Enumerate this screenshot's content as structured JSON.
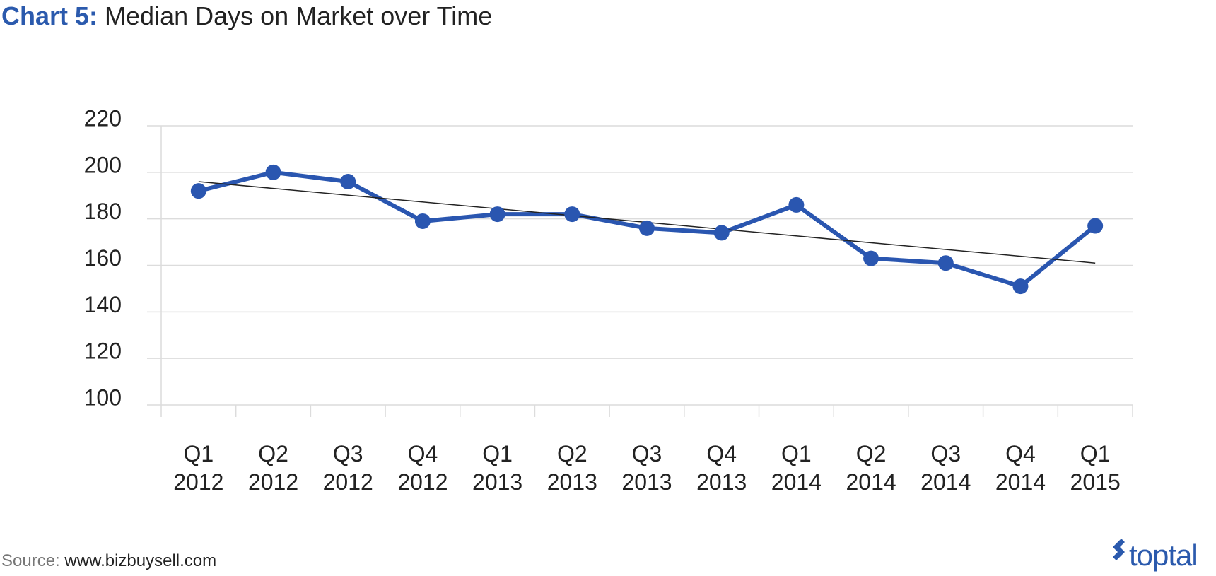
{
  "chart_data": {
    "type": "line",
    "title_prefix": "Chart 5:",
    "title": "Median Days on Market over Time",
    "source_label": "Source:",
    "source": "www.bizbuysell.com",
    "brand": "toptal",
    "categories": [
      "Q1 2012",
      "Q2 2012",
      "Q3 2012",
      "Q4 2012",
      "Q1 2013",
      "Q2 2013",
      "Q3 2013",
      "Q4 2013",
      "Q1 2014",
      "Q2 2014",
      "Q3 2014",
      "Q4 2014",
      "Q1 2015"
    ],
    "values": [
      192,
      200,
      196,
      179,
      182,
      182,
      176,
      174,
      186,
      163,
      161,
      151,
      177
    ],
    "color": "#2a56b0",
    "trendline": [
      196,
      161
    ],
    "trendline_color": "#222222",
    "ylim": [
      100,
      220
    ],
    "yticks": [
      100,
      120,
      140,
      160,
      180,
      200,
      220
    ],
    "grid": true
  }
}
